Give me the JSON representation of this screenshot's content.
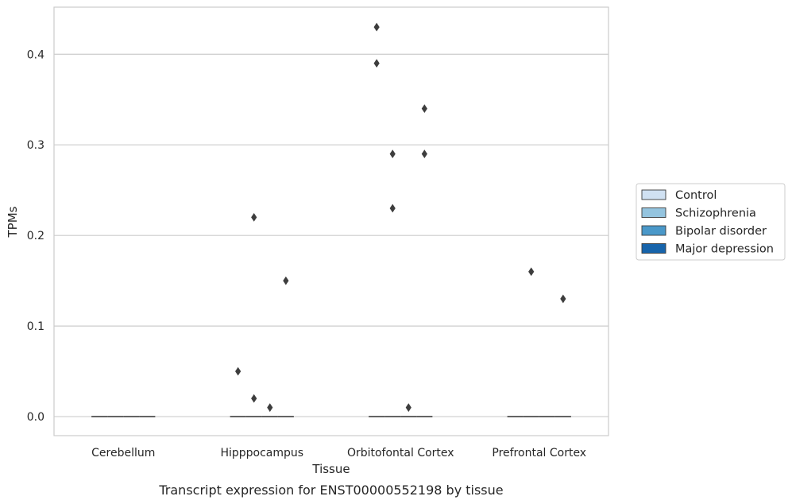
{
  "chart_data": {
    "type": "box",
    "caption": "Transcript expression for ENST00000552198 by tissue",
    "xlabel": "Tissue",
    "ylabel": "TPMs",
    "ylim": [
      -0.021,
      0.452
    ],
    "yticks": [
      0.0,
      0.1,
      0.2,
      0.3,
      0.4
    ],
    "ytick_labels": [
      "0.0",
      "0.1",
      "0.2",
      "0.3",
      "0.4"
    ],
    "grid": true,
    "categories": [
      "Cerebellum",
      "Hipppocampus",
      "Orbitofontal Cortex",
      "Prefrontal Cortex"
    ],
    "series": [
      {
        "name": "Control",
        "color": "#d0e1f2"
      },
      {
        "name": "Schizophrenia",
        "color": "#94c4df"
      },
      {
        "name": "Bipolar disorder",
        "color": "#4a98c9"
      },
      {
        "name": "Major depression",
        "color": "#1764ab"
      }
    ],
    "medians": [
      [
        0,
        0,
        0,
        0
      ],
      [
        0,
        0,
        0,
        0
      ],
      [
        0,
        0,
        0,
        0
      ],
      [
        0,
        0,
        0,
        0
      ]
    ],
    "outliers": [
      {
        "category": 1,
        "series": 0,
        "value": 0.05
      },
      {
        "category": 1,
        "series": 1,
        "value": 0.22
      },
      {
        "category": 1,
        "series": 1,
        "value": 0.02
      },
      {
        "category": 1,
        "series": 2,
        "value": 0.01
      },
      {
        "category": 1,
        "series": 3,
        "value": 0.15
      },
      {
        "category": 2,
        "series": 0,
        "value": 0.43
      },
      {
        "category": 2,
        "series": 0,
        "value": 0.39
      },
      {
        "category": 2,
        "series": 1,
        "value": 0.29
      },
      {
        "category": 2,
        "series": 1,
        "value": 0.23
      },
      {
        "category": 2,
        "series": 2,
        "value": 0.01
      },
      {
        "category": 2,
        "series": 3,
        "value": 0.34
      },
      {
        "category": 2,
        "series": 3,
        "value": 0.29
      },
      {
        "category": 3,
        "series": 1,
        "value": 0.16
      },
      {
        "category": 3,
        "series": 3,
        "value": 0.13
      }
    ],
    "legend_position": "right"
  }
}
